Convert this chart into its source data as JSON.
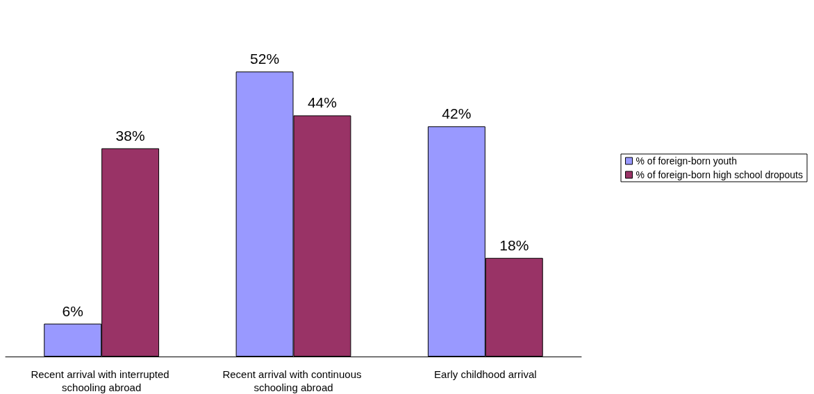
{
  "chart_data": {
    "type": "bar",
    "categories": [
      "Recent arrival with interrupted schooling abroad",
      "Recent arrival with continuous schooling abroad",
      "Early childhood arrival"
    ],
    "series": [
      {
        "name": "% of foreign-born youth",
        "color": "#9999ff",
        "values": [
          6,
          52,
          42
        ],
        "value_labels": [
          "6%",
          "52%",
          "42%"
        ]
      },
      {
        "name": "% of foreign-born high school dropouts",
        "color": "#993366",
        "values": [
          38,
          44,
          18
        ],
        "value_labels": [
          "38%",
          "44%",
          "18%"
        ]
      }
    ],
    "legend": "right",
    "tick_labels": "x"
  }
}
